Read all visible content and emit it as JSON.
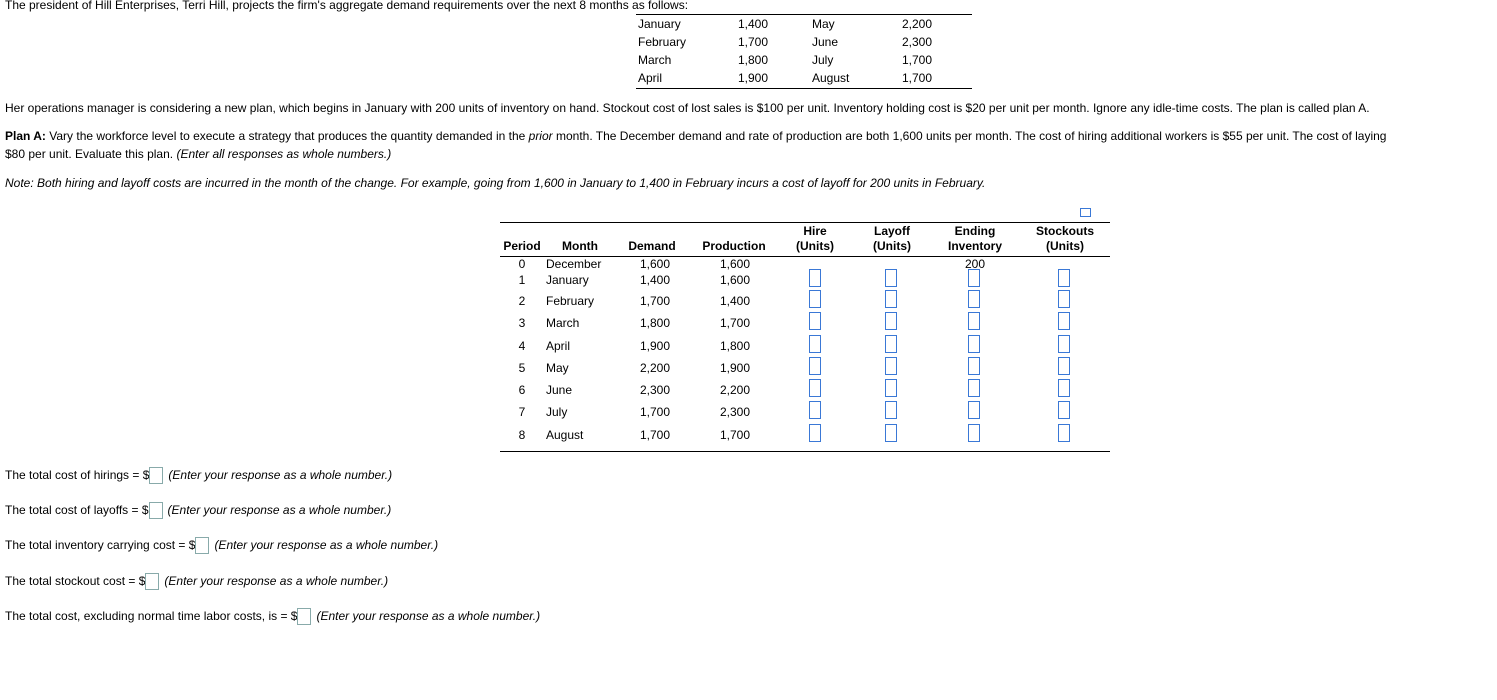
{
  "intro": "The president of Hill Enterprises, Terri Hill, projects the firm's aggregate demand requirements over the next 8 months as follows:",
  "demand_table": [
    [
      "January",
      "1,400",
      "May",
      "2,200"
    ],
    [
      "February",
      "1,700",
      "June",
      "2,300"
    ],
    [
      "March",
      "1,800",
      "July",
      "1,700"
    ],
    [
      "April",
      "1,900",
      "August",
      "1,700"
    ]
  ],
  "para1": "Her operations manager is considering a new plan, which begins in January with 200 units of inventory on hand. Stockout cost of lost sales is $100 per unit. Inventory holding cost is $20 per unit per month. Ignore any idle-time costs. The plan is called plan A.",
  "plan_label": "Plan A:",
  "plan_text_a": " Vary the workforce level to execute a strategy that produces the quantity demanded in the ",
  "plan_text_em": "prior",
  "plan_text_b": " month. The December demand and rate of production are both 1,600 units per month. The cost of hiring additional workers is $55 per unit. The cost of laying",
  "plan_line2": "$80 per unit. Evaluate this plan. ",
  "plan_line2_em": "(Enter all responses as whole numbers.)",
  "note": "Note: Both hiring and layoff costs are incurred in the month of the change. For example, going from 1,600 in January to 1,400 in February incurs a cost of layoff for 200 units in February.",
  "headers": {
    "period": "Period",
    "month": "Month",
    "demand": "Demand",
    "production": "Production",
    "hire1": "Hire",
    "hire2": "(Units)",
    "layoff1": "Layoff",
    "layoff2": "(Units)",
    "end1": "Ending",
    "end2": "Inventory",
    "stock1": "Stockouts",
    "stock2": "(Units)"
  },
  "rows": [
    {
      "period": "0",
      "month": "December",
      "demand": "1,600",
      "production": "1,600",
      "ending": "200"
    },
    {
      "period": "1",
      "month": "January",
      "demand": "1,400",
      "production": "1,600"
    },
    {
      "period": "2",
      "month": "February",
      "demand": "1,700",
      "production": "1,400"
    },
    {
      "period": "3",
      "month": "March",
      "demand": "1,800",
      "production": "1,700"
    },
    {
      "period": "4",
      "month": "April",
      "demand": "1,900",
      "production": "1,800"
    },
    {
      "period": "5",
      "month": "May",
      "demand": "2,200",
      "production": "1,900"
    },
    {
      "period": "6",
      "month": "June",
      "demand": "2,300",
      "production": "2,200"
    },
    {
      "period": "7",
      "month": "July",
      "demand": "1,700",
      "production": "2,300"
    },
    {
      "period": "8",
      "month": "August",
      "demand": "1,700",
      "production": "1,700"
    }
  ],
  "answers": [
    {
      "label": "The total cost of hirings = $",
      "hint": "(Enter your response as a whole number.)"
    },
    {
      "label": "The total cost of layoffs = $",
      "hint": "(Enter your response as a whole number.)"
    },
    {
      "label": "The total inventory carrying cost = $",
      "hint": "(Enter your response as a whole number.)"
    },
    {
      "label": "The total stockout cost = $",
      "hint": "(Enter your response as a whole number.)"
    },
    {
      "label": "The total cost, excluding normal time labor costs, is = $",
      "hint": "(Enter your response as a whole number.)"
    }
  ],
  "input_color": "#3a78d6"
}
